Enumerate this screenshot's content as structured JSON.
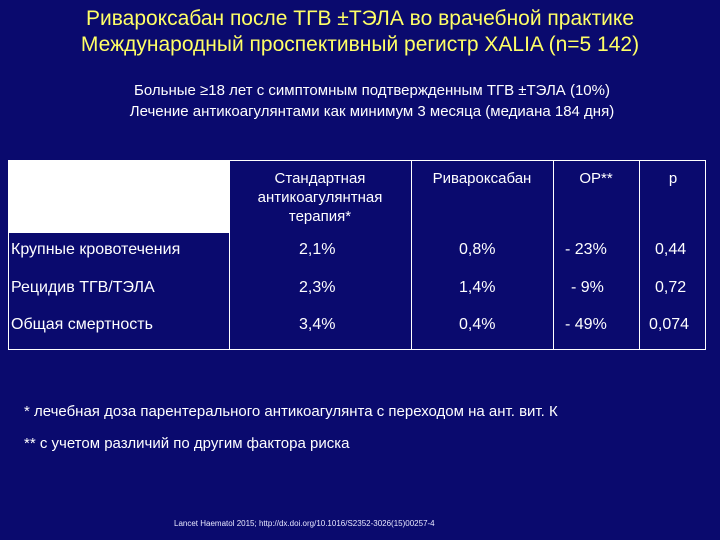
{
  "header": {
    "title_line1": "Ривароксабан после ТГВ ±ТЭЛА во врачебной практике",
    "title_line2": "Международный проспективный регистр XALIA (n=5 142)"
  },
  "intro": {
    "line1": "Больные ≥18 лет с симптомным подтвержденным ТГВ ±ТЭЛА (10%)",
    "line2": "Лечение антикоагулянтами как минимум 3 месяца (медиана 184 дня)"
  },
  "table": {
    "columns": {
      "standard_line1": "Стандартная",
      "standard_line2": "антикоагулянтная",
      "standard_line3": "терапия*",
      "rivaroxaban": "Ривароксабан",
      "or": "ОР**",
      "p": "p"
    },
    "rows": [
      {
        "label": "Крупные кровотечения",
        "standard": "2,1%",
        "rivaroxaban": "0,8%",
        "or": "- 23%",
        "p": "0,44"
      },
      {
        "label": "Рецидив ТГВ/ТЭЛА",
        "standard": "2,3%",
        "rivaroxaban": "1,4%",
        "or": "- 9%",
        "p": "0,72"
      },
      {
        "label": "Общая смертность",
        "standard": "3,4%",
        "rivaroxaban": "0,4%",
        "or": "- 49%",
        "p": "0,074"
      }
    ]
  },
  "footnotes": {
    "note1": "*   лечебная доза парентерального антикоагулянта с переходом на ант. вит. К",
    "note2": "** с учетом различий по другим фактора риска"
  },
  "source": "Lancet Haematol 2015; http://dx.doi.org/10.1016/S2352-3026(15)00257-4",
  "colors": {
    "background": "#0a0a6e",
    "title": "#ffff66",
    "text": "#ffffff"
  }
}
